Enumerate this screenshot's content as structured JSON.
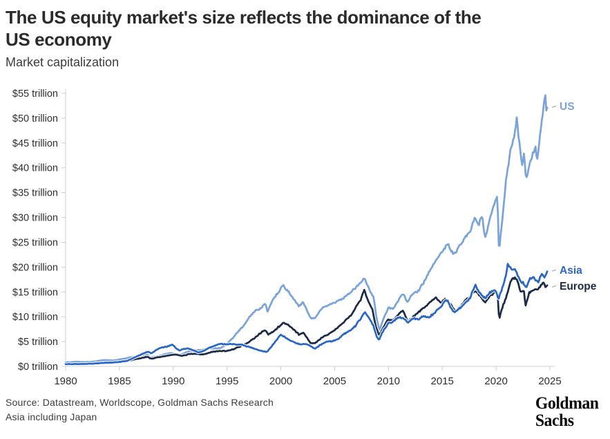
{
  "header": {
    "title": "The US equity market's size reflects the dominance of the\nUS economy",
    "subtitle": "Market capitalization"
  },
  "footer": {
    "source_line1": "Source: Datastream, Worldscope, Goldman Sachs Research",
    "source_line2": "Asia including Japan",
    "logo_line1": "Goldman",
    "logo_line2": "Sachs"
  },
  "colors": {
    "us_line": "#79A3D9",
    "asia_line": "#2A66C4",
    "europe_line": "#1B2A47",
    "axis": "#c9cdd1",
    "tick_label": "#2e2e2e",
    "leader_mark": "#b0b0b0"
  },
  "chart_data": {
    "type": "line",
    "title": "Market capitalization",
    "unit": "USD trillions",
    "grid": false,
    "legend_position": "right-end-labels",
    "legend": [
      "US",
      "Asia",
      "Europe"
    ],
    "x_axis": {
      "range": [
        1980,
        2025
      ],
      "ticks": [
        1980,
        1985,
        1990,
        1995,
        2000,
        2005,
        2010,
        2015,
        2020,
        2025
      ]
    },
    "y_axis": {
      "range": [
        0,
        55
      ],
      "tick_values": [
        0,
        5,
        10,
        15,
        20,
        25,
        30,
        35,
        40,
        45,
        50,
        55
      ],
      "tick_labels": [
        "$0 trillion",
        "$5 trillion",
        "$10 trillion",
        "$15 trillion",
        "$20 trillion",
        "$25 trillion",
        "$30 trillion",
        "$35 trillion",
        "$40 trillion",
        "$45 trillion",
        "$50 trillion",
        "$55 trillion"
      ]
    },
    "series": [
      {
        "name": "US",
        "color": "#79A3D9",
        "label_color": "#79A3D9",
        "points": [
          [
            1980,
            0.8
          ],
          [
            1980.5,
            0.85
          ],
          [
            1981,
            0.95
          ],
          [
            1981.7,
            0.85
          ],
          [
            1982.6,
            0.95
          ],
          [
            1983.5,
            1.3
          ],
          [
            1984.4,
            1.2
          ],
          [
            1985.3,
            1.5
          ],
          [
            1986.2,
            1.9
          ],
          [
            1987,
            2.1
          ],
          [
            1987.6,
            2.4
          ],
          [
            1987.85,
            1.8
          ],
          [
            1988.5,
            2.0
          ],
          [
            1989.7,
            2.7
          ],
          [
            1990.6,
            2.3
          ],
          [
            1991.4,
            3.0
          ],
          [
            1992.4,
            3.3
          ],
          [
            1993.4,
            3.6
          ],
          [
            1994.4,
            3.7
          ],
          [
            1995,
            4.6
          ],
          [
            1995.5,
            5.6
          ],
          [
            1996,
            7.0
          ],
          [
            1996.5,
            8.0
          ],
          [
            1997,
            9.8
          ],
          [
            1997.6,
            11.2
          ],
          [
            1998.1,
            11.6
          ],
          [
            1998.55,
            12.8
          ],
          [
            1998.75,
            10.9
          ],
          [
            1999.2,
            13.2
          ],
          [
            1999.8,
            15.0
          ],
          [
            2000.2,
            16.3
          ],
          [
            2000.65,
            15.2
          ],
          [
            2001.1,
            13.8
          ],
          [
            2001.7,
            12.1
          ],
          [
            2002.05,
            13.0
          ],
          [
            2002.75,
            9.8
          ],
          [
            2003.15,
            9.7
          ],
          [
            2003.9,
            11.9
          ],
          [
            2004.8,
            12.6
          ],
          [
            2005.7,
            13.6
          ],
          [
            2006.6,
            15.1
          ],
          [
            2007.4,
            16.9
          ],
          [
            2007.78,
            17.7
          ],
          [
            2008.3,
            15.1
          ],
          [
            2008.62,
            13.9
          ],
          [
            2008.85,
            10.2
          ],
          [
            2009.15,
            7.2
          ],
          [
            2009.6,
            9.9
          ],
          [
            2010,
            11.9
          ],
          [
            2010.45,
            11.6
          ],
          [
            2010.95,
            13.4
          ],
          [
            2011.35,
            14.7
          ],
          [
            2011.75,
            12.9
          ],
          [
            2012.2,
            14.6
          ],
          [
            2012.7,
            15.0
          ],
          [
            2013.3,
            17.0
          ],
          [
            2013.95,
            19.8
          ],
          [
            2014.5,
            21.6
          ],
          [
            2014.95,
            23.1
          ],
          [
            2015.5,
            24.7
          ],
          [
            2015.8,
            23.2
          ],
          [
            2016.1,
            22.7
          ],
          [
            2016.6,
            24.3
          ],
          [
            2017.1,
            25.8
          ],
          [
            2017.6,
            27.3
          ],
          [
            2018.05,
            30.1
          ],
          [
            2018.35,
            28.3
          ],
          [
            2018.7,
            30.6
          ],
          [
            2018.97,
            25.8
          ],
          [
            2019.4,
            29.6
          ],
          [
            2019.95,
            33.6
          ],
          [
            2020.13,
            33.9
          ],
          [
            2020.27,
            22.9
          ],
          [
            2020.6,
            30.2
          ],
          [
            2020.95,
            38.2
          ],
          [
            2021.4,
            44.2
          ],
          [
            2021.68,
            46.3
          ],
          [
            2021.92,
            49.9
          ],
          [
            2022.2,
            44.2
          ],
          [
            2022.42,
            40.2
          ],
          [
            2022.58,
            43.0
          ],
          [
            2022.78,
            37.8
          ],
          [
            2023.1,
            40.6
          ],
          [
            2023.42,
            42.8
          ],
          [
            2023.65,
            44.2
          ],
          [
            2023.85,
            41.6
          ],
          [
            2024.1,
            47.2
          ],
          [
            2024.35,
            50.8
          ],
          [
            2024.55,
            55.2
          ],
          [
            2024.68,
            51.6
          ],
          [
            2024.8,
            52.6
          ]
        ]
      },
      {
        "name": "Europe",
        "color": "#1B2A47",
        "label_color": "#1B2A47",
        "points": [
          [
            1980,
            0.4
          ],
          [
            1981,
            0.4
          ],
          [
            1982,
            0.45
          ],
          [
            1983,
            0.55
          ],
          [
            1984,
            0.65
          ],
          [
            1985,
            0.8
          ],
          [
            1986,
            1.2
          ],
          [
            1986.8,
            1.6
          ],
          [
            1987.6,
            1.95
          ],
          [
            1987.95,
            1.55
          ],
          [
            1988.5,
            1.8
          ],
          [
            1989.5,
            2.2
          ],
          [
            1990.2,
            2.4
          ],
          [
            1990.8,
            2.1
          ],
          [
            1991.5,
            2.5
          ],
          [
            1992.3,
            2.5
          ],
          [
            1992.8,
            2.4
          ],
          [
            1993.5,
            2.9
          ],
          [
            1994.2,
            3.1
          ],
          [
            1994.9,
            3.1
          ],
          [
            1995.5,
            3.4
          ],
          [
            1996.2,
            4.0
          ],
          [
            1996.9,
            4.7
          ],
          [
            1997.5,
            5.6
          ],
          [
            1998.0,
            6.5
          ],
          [
            1998.55,
            7.4
          ],
          [
            1998.8,
            6.4
          ],
          [
            1999.3,
            7.0
          ],
          [
            1999.9,
            8.2
          ],
          [
            2000.2,
            8.8
          ],
          [
            2000.7,
            8.4
          ],
          [
            2001.2,
            7.4
          ],
          [
            2001.7,
            6.4
          ],
          [
            2002.1,
            6.8
          ],
          [
            2002.75,
            4.7
          ],
          [
            2003.15,
            4.6
          ],
          [
            2003.8,
            5.8
          ],
          [
            2004.5,
            6.6
          ],
          [
            2005.2,
            7.6
          ],
          [
            2005.9,
            9.0
          ],
          [
            2006.5,
            10.2
          ],
          [
            2007.0,
            12.0
          ],
          [
            2007.45,
            13.6
          ],
          [
            2007.75,
            15.5
          ],
          [
            2008.1,
            13.2
          ],
          [
            2008.5,
            11.5
          ],
          [
            2008.85,
            7.8
          ],
          [
            2009.15,
            6.2
          ],
          [
            2009.6,
            8.2
          ],
          [
            2009.95,
            9.4
          ],
          [
            2010.4,
            9.2
          ],
          [
            2010.9,
            10.4
          ],
          [
            2011.35,
            11.3
          ],
          [
            2011.8,
            9.0
          ],
          [
            2012.3,
            10.0
          ],
          [
            2012.75,
            10.8
          ],
          [
            2013.3,
            11.9
          ],
          [
            2013.8,
            12.8
          ],
          [
            2014.4,
            13.8
          ],
          [
            2014.9,
            12.9
          ],
          [
            2015.3,
            13.5
          ],
          [
            2015.8,
            12.4
          ],
          [
            2016.15,
            11.2
          ],
          [
            2016.6,
            11.8
          ],
          [
            2017.1,
            13.2
          ],
          [
            2017.6,
            14.2
          ],
          [
            2018.05,
            15.3
          ],
          [
            2018.5,
            14.2
          ],
          [
            2018.97,
            12.9
          ],
          [
            2019.4,
            14.2
          ],
          [
            2019.95,
            15.0
          ],
          [
            2020.13,
            14.9
          ],
          [
            2020.28,
            9.5
          ],
          [
            2020.6,
            12.0
          ],
          [
            2020.95,
            14.0
          ],
          [
            2021.3,
            16.8
          ],
          [
            2021.6,
            18.0
          ],
          [
            2021.95,
            17.3
          ],
          [
            2022.3,
            14.8
          ],
          [
            2022.55,
            15.5
          ],
          [
            2022.75,
            12.3
          ],
          [
            2023.1,
            14.9
          ],
          [
            2023.5,
            15.3
          ],
          [
            2023.9,
            15.6
          ],
          [
            2024.2,
            16.4
          ],
          [
            2024.45,
            17.0
          ],
          [
            2024.6,
            15.9
          ],
          [
            2024.8,
            16.4
          ]
        ]
      },
      {
        "name": "Asia",
        "color": "#2A66C4",
        "label_color": "#2A66C4",
        "points": [
          [
            1980,
            0.45
          ],
          [
            1981,
            0.5
          ],
          [
            1982,
            0.5
          ],
          [
            1983,
            0.65
          ],
          [
            1984,
            0.75
          ],
          [
            1985,
            0.9
          ],
          [
            1985.7,
            1.1
          ],
          [
            1986.3,
            1.7
          ],
          [
            1986.8,
            2.2
          ],
          [
            1987.3,
            2.7
          ],
          [
            1987.7,
            3.0
          ],
          [
            1987.95,
            2.6
          ],
          [
            1988.4,
            3.3
          ],
          [
            1988.9,
            3.8
          ],
          [
            1989.4,
            4.0
          ],
          [
            1989.95,
            4.4
          ],
          [
            1990.3,
            3.6
          ],
          [
            1990.6,
            3.1
          ],
          [
            1990.9,
            3.5
          ],
          [
            1991.4,
            3.6
          ],
          [
            1991.9,
            3.2
          ],
          [
            1992.4,
            2.8
          ],
          [
            1992.8,
            3.1
          ],
          [
            1993.3,
            3.7
          ],
          [
            1993.8,
            4.2
          ],
          [
            1994.4,
            4.6
          ],
          [
            1994.9,
            4.4
          ],
          [
            1995.4,
            4.5
          ],
          [
            1995.9,
            4.4
          ],
          [
            1996.4,
            4.4
          ],
          [
            1996.9,
            4.0
          ],
          [
            1997.4,
            3.7
          ],
          [
            1997.9,
            3.3
          ],
          [
            1998.4,
            3.0
          ],
          [
            1998.7,
            2.9
          ],
          [
            1999.2,
            4.2
          ],
          [
            1999.6,
            5.3
          ],
          [
            1999.95,
            6.4
          ],
          [
            2000.4,
            5.9
          ],
          [
            2000.9,
            5.2
          ],
          [
            2001.4,
            4.7
          ],
          [
            2001.9,
            4.4
          ],
          [
            2002.4,
            4.5
          ],
          [
            2002.9,
            3.9
          ],
          [
            2003.2,
            3.6
          ],
          [
            2003.7,
            4.4
          ],
          [
            2004.2,
            4.9
          ],
          [
            2004.8,
            5.1
          ],
          [
            2005.3,
            5.5
          ],
          [
            2005.9,
            6.6
          ],
          [
            2006.4,
            7.2
          ],
          [
            2006.9,
            8.1
          ],
          [
            2007.4,
            9.6
          ],
          [
            2007.8,
            10.9
          ],
          [
            2008.2,
            9.8
          ],
          [
            2008.6,
            8.2
          ],
          [
            2008.9,
            6.0
          ],
          [
            2009.1,
            5.3
          ],
          [
            2009.5,
            7.1
          ],
          [
            2009.95,
            8.6
          ],
          [
            2010.4,
            8.9
          ],
          [
            2010.9,
            9.9
          ],
          [
            2011.4,
            9.7
          ],
          [
            2011.8,
            8.8
          ],
          [
            2012.3,
            9.7
          ],
          [
            2012.8,
            9.5
          ],
          [
            2013.2,
            10.1
          ],
          [
            2013.7,
            9.8
          ],
          [
            2014.2,
            10.6
          ],
          [
            2014.8,
            11.9
          ],
          [
            2015.2,
            12.9
          ],
          [
            2015.45,
            13.4
          ],
          [
            2015.8,
            11.8
          ],
          [
            2016.1,
            10.9
          ],
          [
            2016.6,
            11.7
          ],
          [
            2017.1,
            12.7
          ],
          [
            2017.6,
            13.9
          ],
          [
            2018.05,
            16.4
          ],
          [
            2018.4,
            15.0
          ],
          [
            2018.8,
            14.0
          ],
          [
            2019.0,
            13.7
          ],
          [
            2019.4,
            14.9
          ],
          [
            2019.95,
            15.4
          ],
          [
            2020.2,
            13.5
          ],
          [
            2020.5,
            15.2
          ],
          [
            2020.95,
            18.6
          ],
          [
            2021.1,
            20.7
          ],
          [
            2021.45,
            19.3
          ],
          [
            2021.75,
            19.8
          ],
          [
            2022.1,
            17.8
          ],
          [
            2022.5,
            16.8
          ],
          [
            2022.85,
            15.9
          ],
          [
            2023.1,
            17.6
          ],
          [
            2023.5,
            17.9
          ],
          [
            2023.9,
            16.9
          ],
          [
            2024.2,
            18.6
          ],
          [
            2024.45,
            18.0
          ],
          [
            2024.65,
            18.4
          ],
          [
            2024.8,
            19.6
          ]
        ]
      }
    ]
  }
}
